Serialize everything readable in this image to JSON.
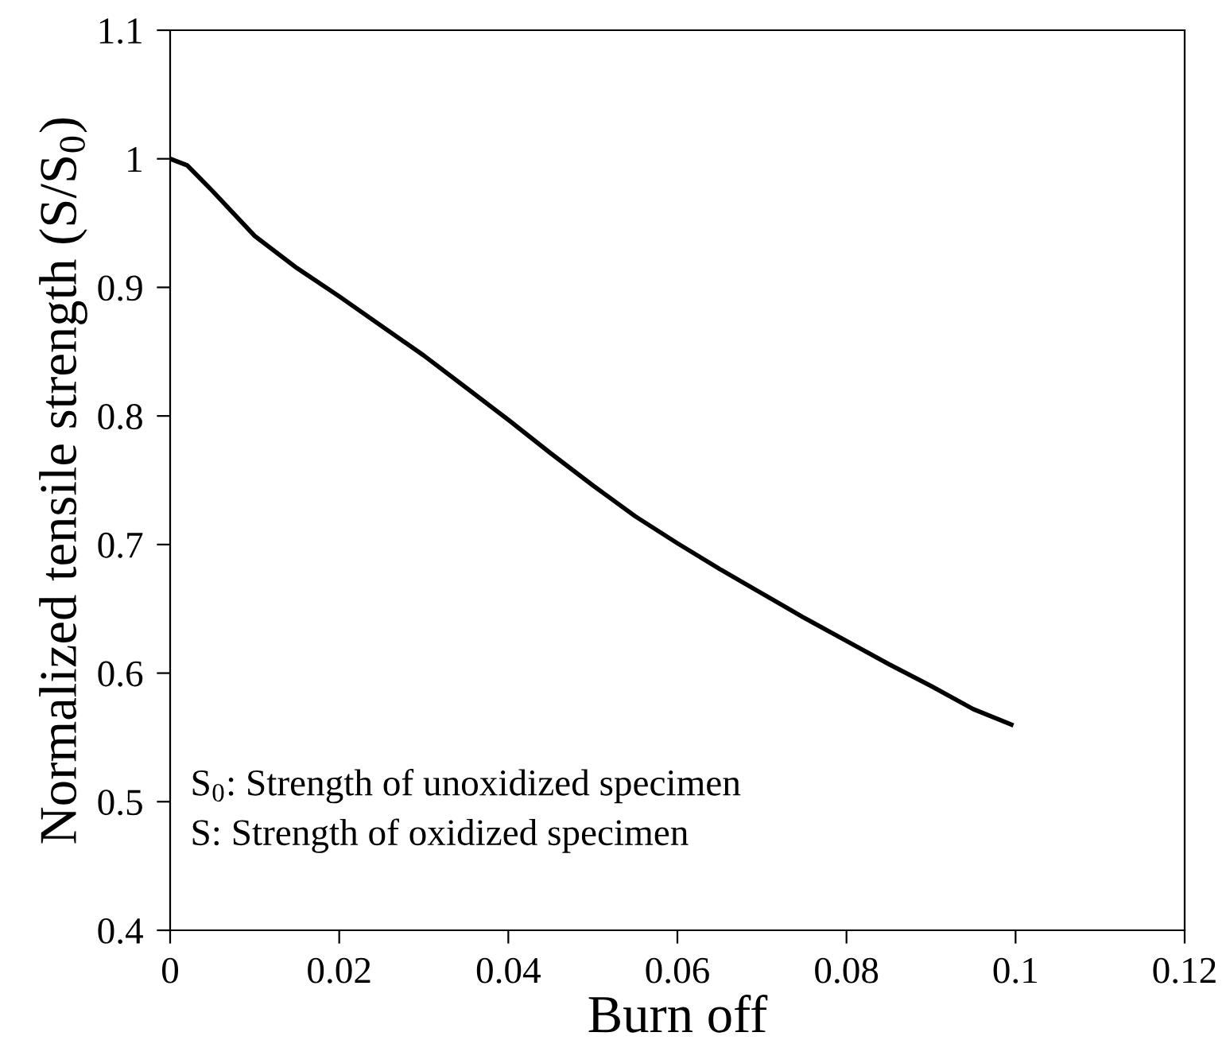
{
  "chart_data": {
    "type": "line",
    "xlabel": "Burn off",
    "ylabel": "Normalized tensile strength (S/S$_{0}$)",
    "annotations": [
      "S$_{0}$: Strength of unoxidized specimen",
      "S: Strength of oxidized specimen"
    ],
    "x": [
      0,
      0.002,
      0.005,
      0.01,
      0.015,
      0.02,
      0.025,
      0.03,
      0.035,
      0.04,
      0.045,
      0.05,
      0.055,
      0.06,
      0.065,
      0.07,
      0.075,
      0.08,
      0.085,
      0.09,
      0.095,
      0.0995
    ],
    "series": [
      {
        "color": "#000000",
        "values": [
          1.0,
          0.995,
          0.975,
          0.94,
          0.915,
          0.893,
          0.87,
          0.847,
          0.822,
          0.797,
          0.771,
          0.746,
          0.722,
          0.701,
          0.681,
          0.662,
          0.643,
          0.625,
          0.607,
          0.59,
          0.572,
          0.56
        ]
      }
    ],
    "xlim": [
      0,
      0.12
    ],
    "xticks": [
      0,
      0.02,
      0.04,
      0.06,
      0.08,
      0.1,
      0.12
    ],
    "ylim": [
      0.4,
      1.1
    ],
    "yticks": [
      0.4,
      0.5,
      0.6,
      0.7,
      0.8,
      0.9,
      1,
      1.1
    ],
    "grid": false,
    "marker": "none",
    "line_style": "solid"
  }
}
